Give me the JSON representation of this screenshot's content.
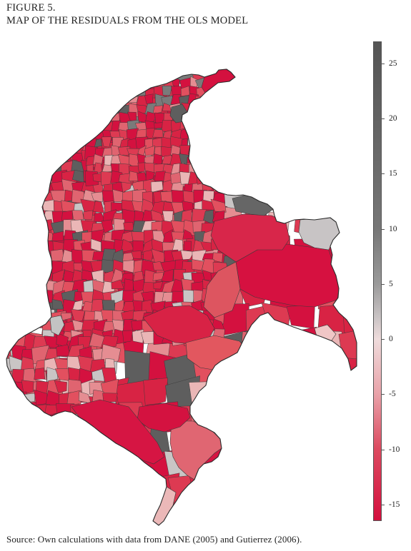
{
  "figure": {
    "label": "FIGURE 5.",
    "title": "MAP OF THE RESIDUALS FROM THE OLS MODEL",
    "source": "Source: Own calculations with data from DANE (2005) and Gutierrez (2006)."
  },
  "legend": {
    "min": -16.5,
    "max": 27,
    "ticks": [
      25,
      20,
      15,
      10,
      5,
      0,
      -5,
      -10,
      -15
    ],
    "gradient": [
      {
        "value": 27,
        "color": "#555555"
      },
      {
        "value": 10,
        "color": "#777777"
      },
      {
        "value": 5,
        "color": "#9a9a9a"
      },
      {
        "value": 2,
        "color": "#c9c3c4"
      },
      {
        "value": 0,
        "color": "#efdcdc"
      },
      {
        "value": -5,
        "color": "#e9a2a9"
      },
      {
        "value": -10,
        "color": "#dc4a60"
      },
      {
        "value": -16.5,
        "color": "#d40f3e"
      }
    ]
  },
  "map": {
    "region": "Colombia (municipalities)",
    "fill_palette": [
      "#d4113f",
      "#dd3a52",
      "#e06470",
      "#e58d92",
      "#eab6b6",
      "#e2505f",
      "#d82344",
      "#c9c5c5",
      "#7a7a7a",
      "#5e5e5e"
    ],
    "border_color": "#3a3a3a"
  }
}
